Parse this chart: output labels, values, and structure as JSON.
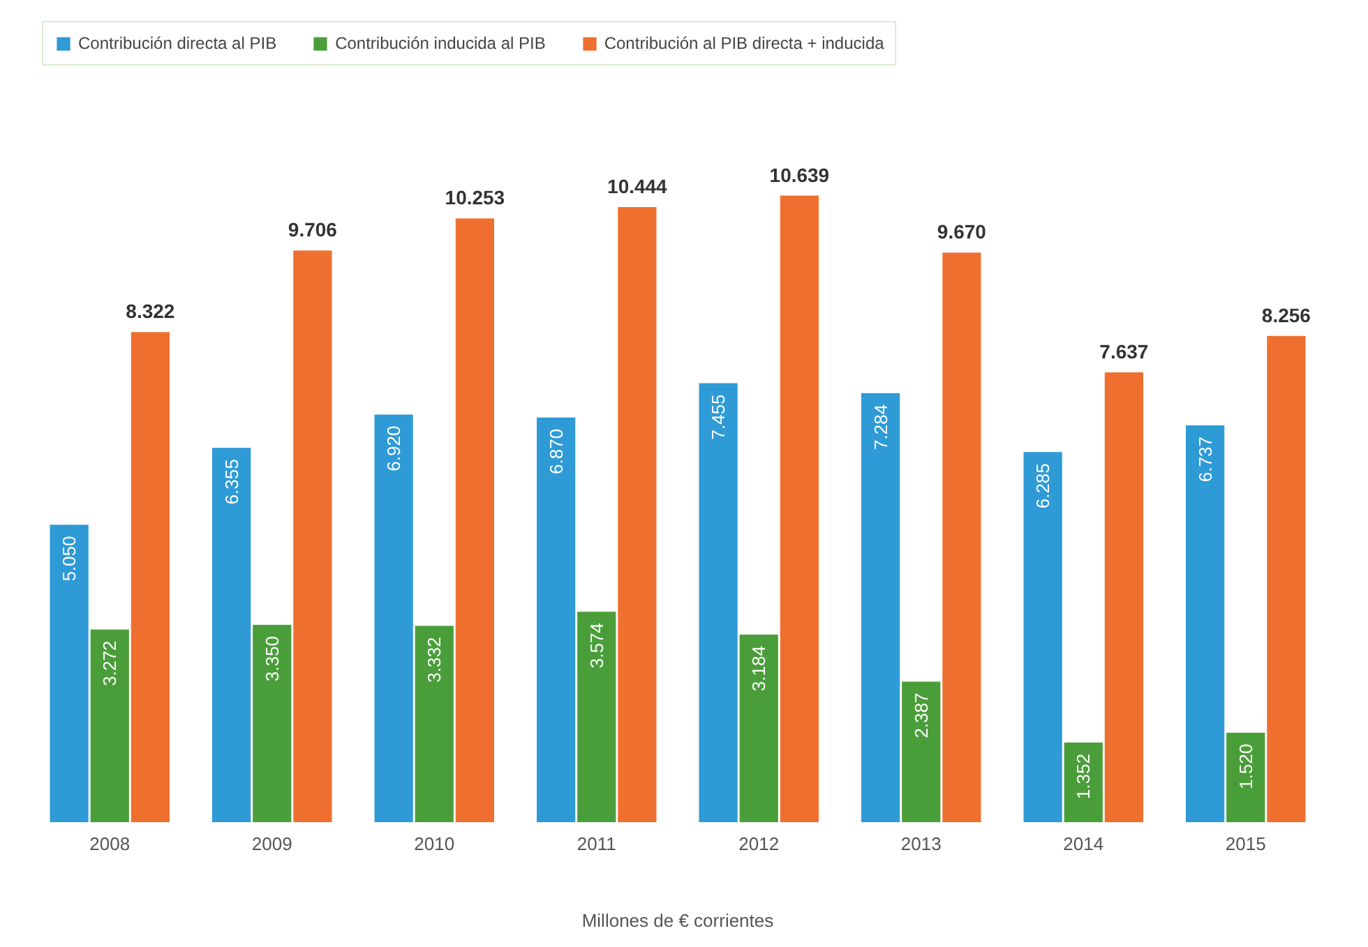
{
  "chart_data": {
    "type": "bar",
    "categories": [
      "2008",
      "2009",
      "2010",
      "2011",
      "2012",
      "2013",
      "2014",
      "2015"
    ],
    "xlabel": "Millones de € corrientes",
    "legend": "top left",
    "grid": false,
    "series": [
      {
        "name": "Contribución directa al PIB",
        "color": "#2e9ad6",
        "values": [
          5050,
          6355,
          6920,
          6870,
          7455,
          7284,
          6285,
          6737
        ],
        "value_labels": [
          "5.050",
          "6.355",
          "6.920",
          "6.870",
          "7.455",
          "7.284",
          "6.285",
          "6.737"
        ]
      },
      {
        "name": "Contribución inducida al PIB",
        "color": "#4a9e3a",
        "values": [
          3272,
          3350,
          3332,
          3574,
          3184,
          2387,
          1352,
          1520
        ],
        "value_labels": [
          "3.272",
          "3.350",
          "3.332",
          "3.574",
          "3.184",
          "2.387",
          "1.352",
          "1.520"
        ]
      },
      {
        "name": "Contribución al PIB directa + inducida",
        "color": "#ef6f2e",
        "values": [
          8322,
          9706,
          10253,
          10444,
          10639,
          9670,
          7637,
          8256
        ],
        "value_labels": [
          "8.322",
          "9.706",
          "10.253",
          "10.444",
          "10.639",
          "9.670",
          "7.637",
          "8.256"
        ]
      }
    ]
  }
}
